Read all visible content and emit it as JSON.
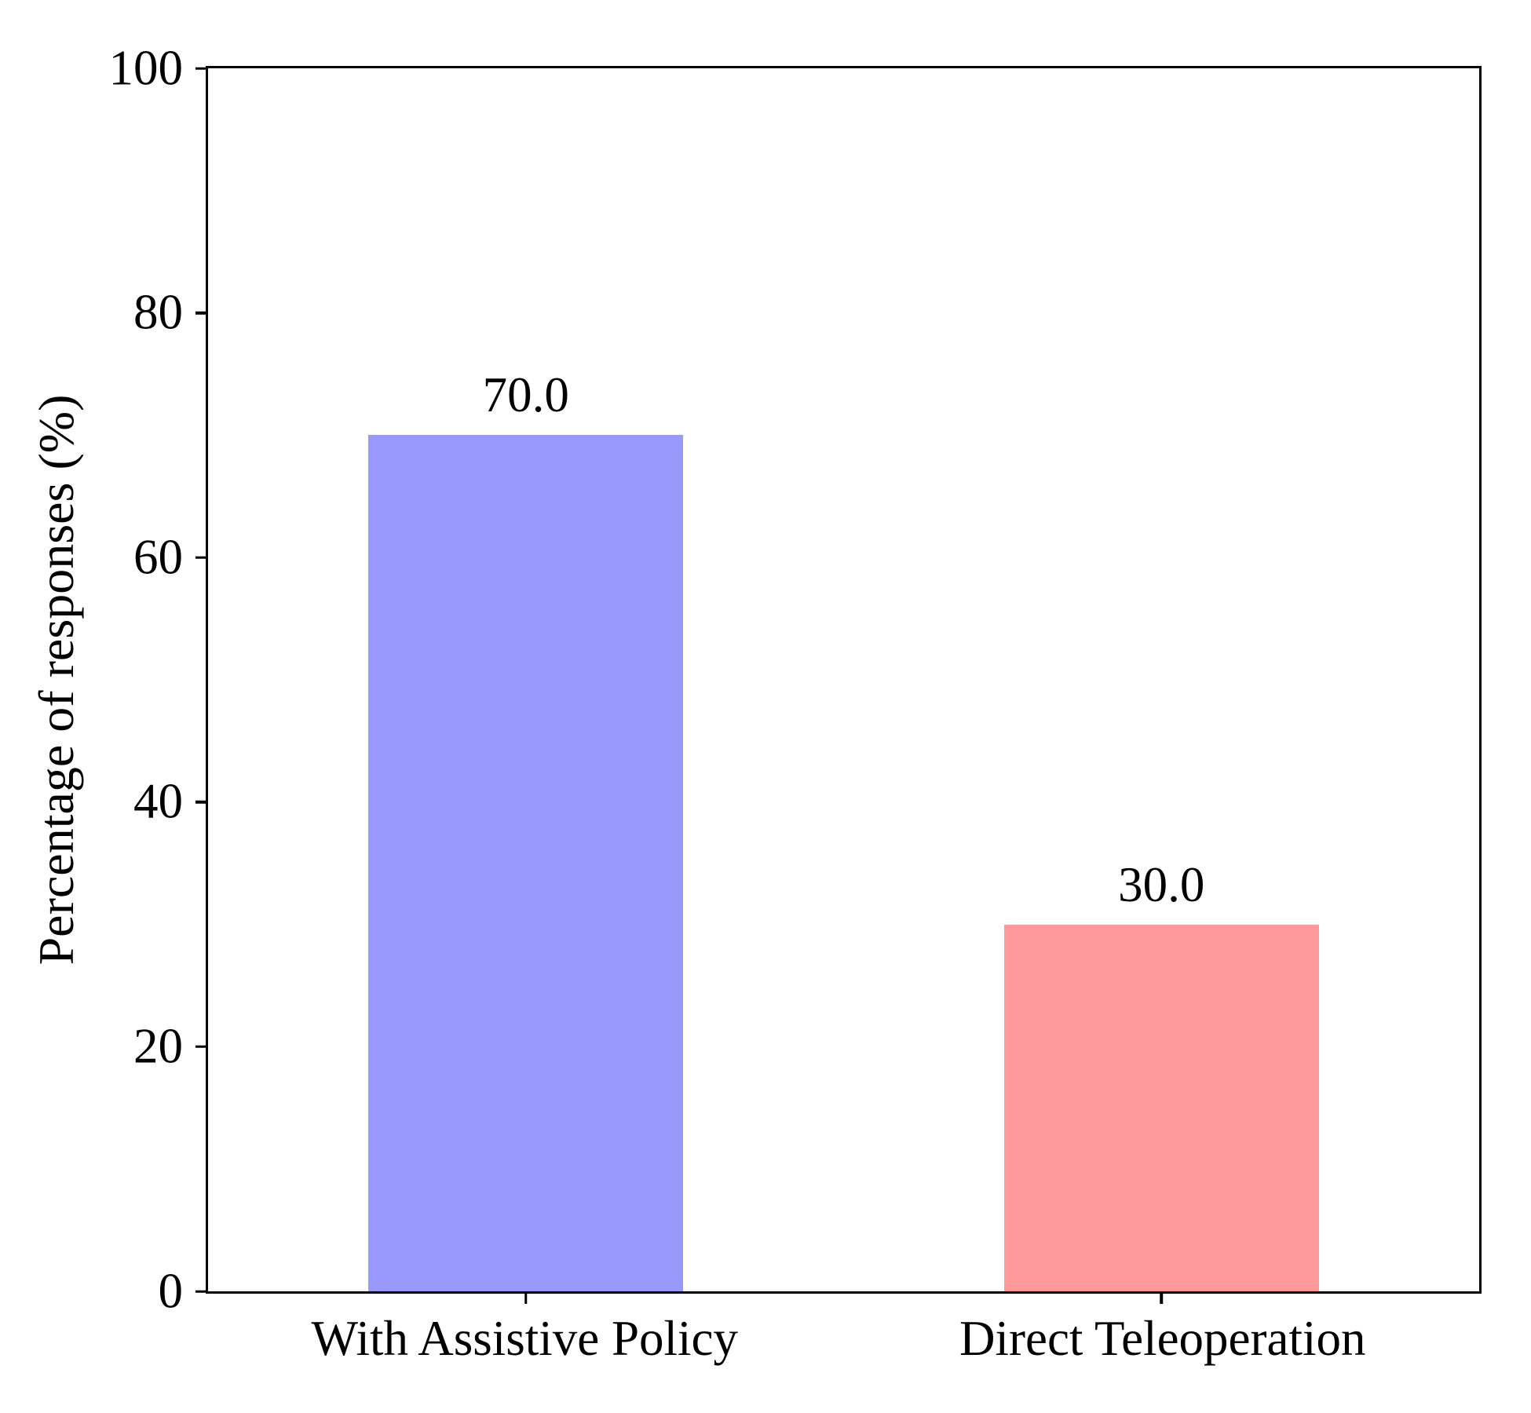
{
  "chart_data": {
    "type": "bar",
    "categories": [
      "With Assistive Policy",
      "Direct Teleoperation"
    ],
    "values": [
      70.0,
      30.0
    ],
    "bar_labels": [
      "70.0",
      "30.0"
    ],
    "colors": [
      "#9999fb",
      "#ff9999"
    ],
    "ylabel": "Percentage of responses (%)",
    "ylim": [
      0,
      100
    ],
    "yticks": [
      0,
      20,
      40,
      60,
      80,
      100
    ],
    "grid": false,
    "legend": "none",
    "background": "#ffffff",
    "axis_color": "#000000"
  }
}
